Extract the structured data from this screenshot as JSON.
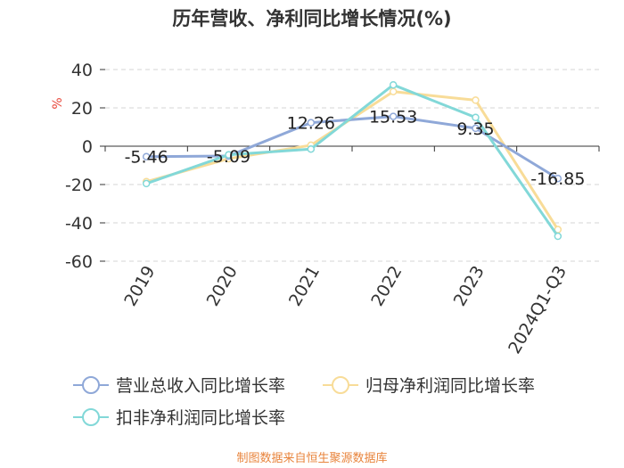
{
  "chart_data": {
    "type": "line",
    "title": "历年营收、净利同比增长情况(%)",
    "ylabel": "%",
    "categories": [
      "2019",
      "2020",
      "2021",
      "2022",
      "2023",
      "2024Q1-Q3"
    ],
    "ylim": [
      -60,
      40
    ],
    "yticks": [
      40,
      20,
      0,
      -20,
      -40,
      -60
    ],
    "grid": true,
    "legend_position": "bottom",
    "series": [
      {
        "name": "营业总收入同比增长率",
        "color": "#8fa8d8",
        "values": [
          -5.46,
          -5.09,
          12.26,
          15.53,
          9.35,
          -16.85
        ],
        "labels": [
          "-5.46",
          "-5.09",
          "12.26",
          "15.53",
          "9.35",
          "-16.85"
        ]
      },
      {
        "name": "归母净利润同比增长率",
        "color": "#f8dc98",
        "values": [
          -18.5,
          -6.5,
          0.5,
          28.5,
          24.0,
          -43.5
        ]
      },
      {
        "name": "扣非净利润同比增长率",
        "color": "#82d8d8",
        "values": [
          -19.5,
          -4.5,
          -1.5,
          32.0,
          15.0,
          -47.0
        ]
      }
    ]
  },
  "source": "制图数据来自恒生聚源数据库"
}
